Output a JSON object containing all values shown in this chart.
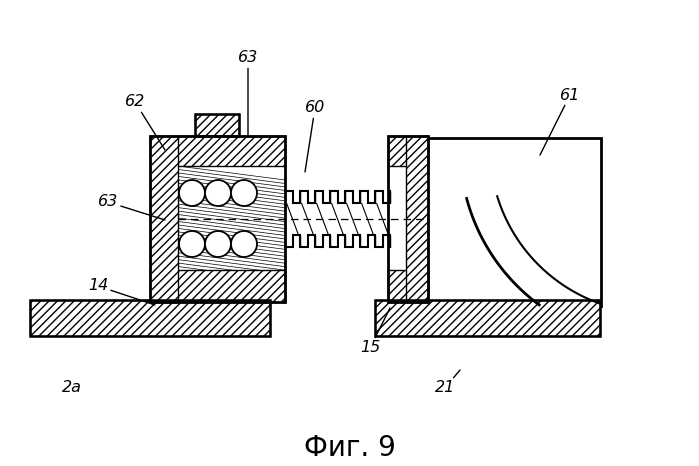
{
  "title": "Фиг. 9",
  "bg_color": "#ffffff",
  "lc": "#000000"
}
